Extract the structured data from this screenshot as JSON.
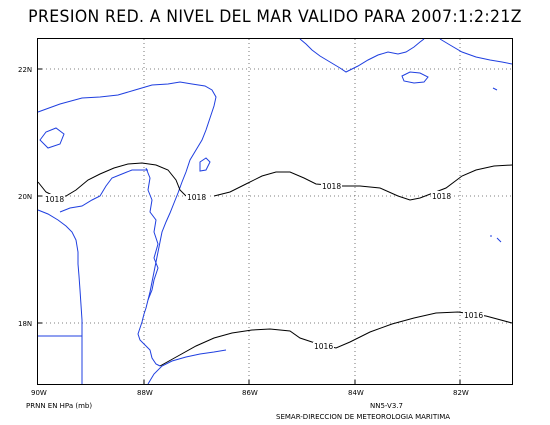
{
  "title": "PRESION RED. A NIVEL DEL MAR VALIDO PARA 2007:1:2:21Z",
  "map": {
    "lat_labels": [
      "22N",
      "20N",
      "18N"
    ],
    "lon_labels": [
      "90W",
      "88W",
      "86W",
      "84W",
      "82W"
    ],
    "colors": {
      "coastline": "#1f3fe0",
      "isobar": "#000000",
      "frame": "#000000",
      "grid": "#555555"
    }
  },
  "isobars": [
    {
      "label": "1018",
      "value": 1018
    },
    {
      "label": "1018",
      "value": 1018
    },
    {
      "label": "1018",
      "value": 1018
    },
    {
      "label": "1016",
      "value": 1016
    },
    {
      "label": "1016",
      "value": 1016
    }
  ],
  "footer": {
    "units": "PRNN EN HPa (mb)",
    "model": "NN5-V3.7",
    "source": "SEMAR-DIRECCION DE METEOROLOGIA MARITIMA"
  }
}
